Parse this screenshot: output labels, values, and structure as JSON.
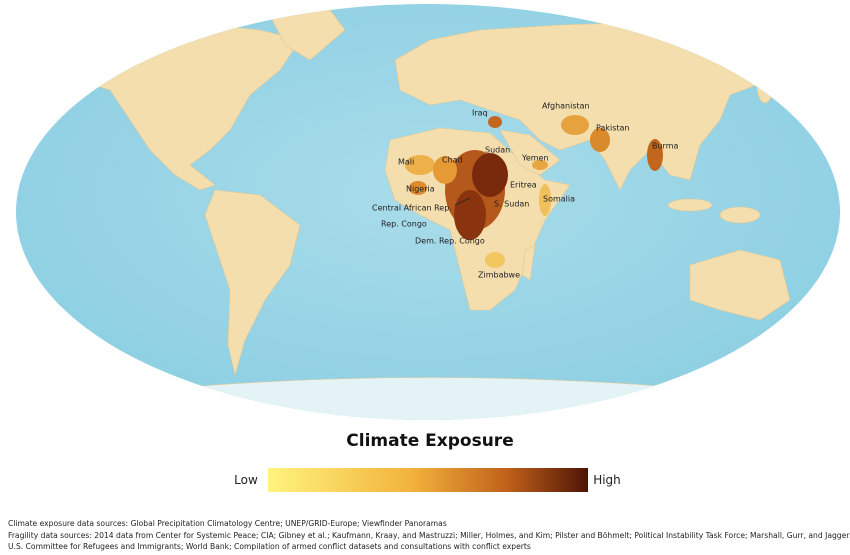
{
  "map": {
    "labels": [
      "Iraq",
      "Afghanistan",
      "Pakistan",
      "Mali",
      "Chad",
      "Sudan",
      "Yemen",
      "Burma",
      "Nigeria",
      "Eritrea",
      "Central African Rep.",
      "S. Sudan",
      "Somalia",
      "Rep. Congo",
      "Dem. Rep. Congo",
      "Zimbabwe"
    ]
  },
  "legend": {
    "title": "Climate Exposure",
    "low": "Low",
    "high": "High"
  },
  "sources": [
    "Climate exposure data sources: Global Precipitation Climatology Centre; UNEP/GRID-Europe; Viewfinder Panoramas",
    "Fragility data sources: 2014 data from Center for Systemic Peace; CIA; Gibney et al.; Kaufmann, Kraay, and Mastruzzi; Miller, Holmes, and Kim; Pilster and Böhmelt; Political Instability Task Force; Marshall, Gurr, and Jaggers;",
    "U.S. Committee for Refugees and Immigrants; World Bank; Compilation of armed conflict datasets and consultations with conflict experts"
  ]
}
